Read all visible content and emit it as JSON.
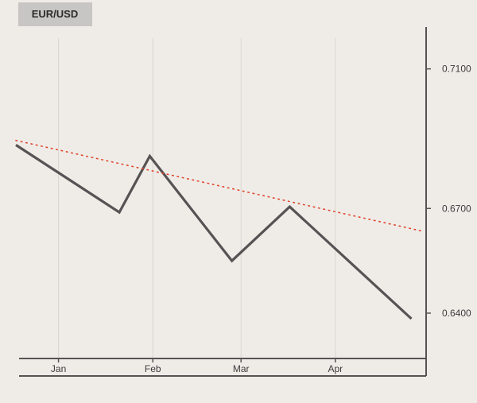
{
  "chart_data": {
    "type": "line",
    "title": "EUR/USD",
    "xlabel": "",
    "ylabel": "",
    "x_ticks": [
      {
        "label": "Jan",
        "date": "2024-01-15"
      },
      {
        "label": "Feb",
        "date": "2024-02-15"
      },
      {
        "label": "Mar",
        "date": "2024-03-15"
      },
      {
        "label": "Apr",
        "date": "2024-04-15"
      }
    ],
    "y_ticks": [
      {
        "label": "0.6400",
        "value": 0.64
      },
      {
        "label": "0.6700",
        "value": 0.67
      },
      {
        "label": "0.7100",
        "value": 0.71
      }
    ],
    "ylim": [
      0.627,
      0.722
    ],
    "y_axis_side": "right",
    "xgrid": true,
    "ygrid": false,
    "series": [
      {
        "style": "solid",
        "color": "#555353",
        "points": [
          {
            "x": "2024-01-01",
            "y": 0.6882
          },
          {
            "x": "2024-02-04",
            "y": 0.6689
          },
          {
            "x": "2024-02-14",
            "y": 0.685
          },
          {
            "x": "2024-03-12",
            "y": 0.655
          },
          {
            "x": "2024-03-31",
            "y": 0.6705
          },
          {
            "x": "2024-05-10",
            "y": 0.6384
          }
        ]
      },
      {
        "style": "dotted",
        "color": "#e0452a",
        "points": [
          {
            "x": "2024-01-01",
            "y": 0.6895
          },
          {
            "x": "2024-05-13",
            "y": 0.6636
          }
        ]
      }
    ]
  }
}
